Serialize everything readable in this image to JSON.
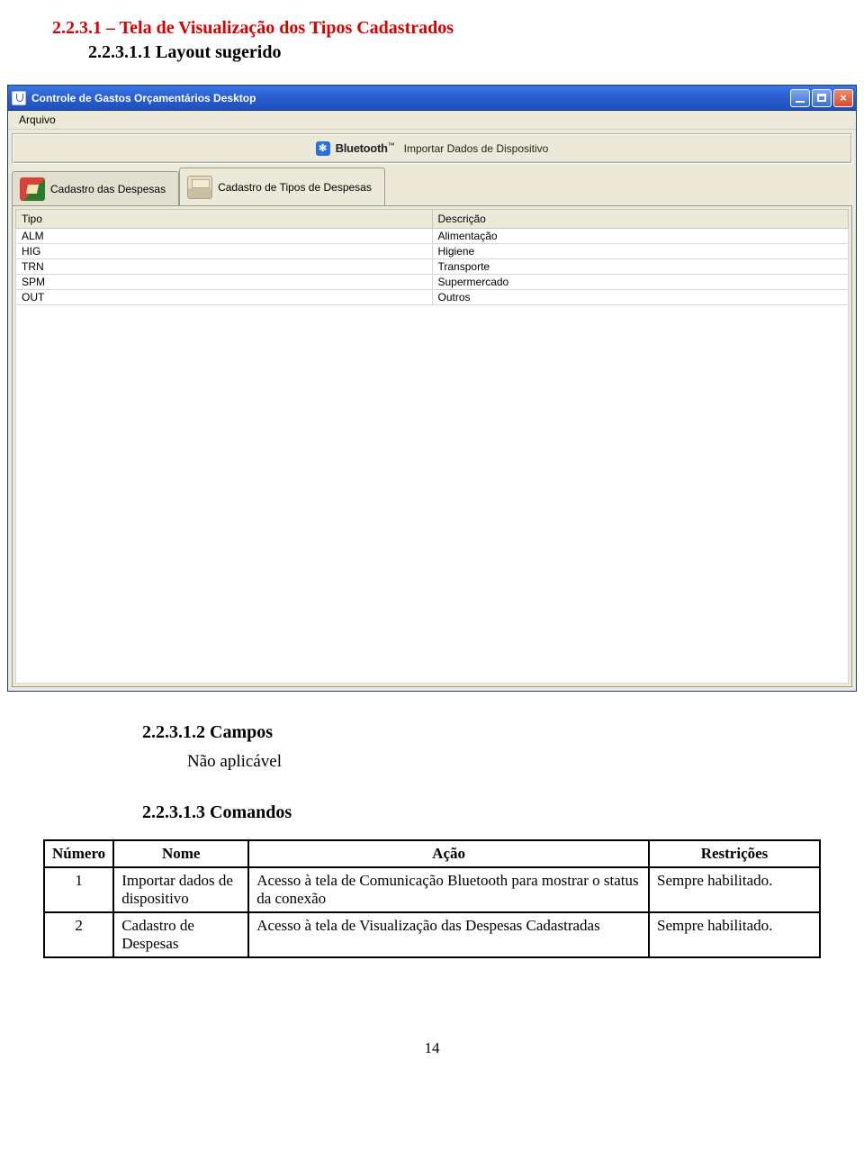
{
  "doc": {
    "heading_red": "2.2.3.1 – Tela de Visualização dos Tipos Cadastrados",
    "heading_layout": "2.2.3.1.1 Layout sugerido",
    "heading_campos": "2.2.3.1.2 Campos",
    "campos_body": "Não aplicável",
    "heading_comandos": "2.2.3.1.3 Comandos",
    "page_number": "14"
  },
  "window": {
    "title": "Controle de Gastos Orçamentários Desktop",
    "menu": {
      "arquivo": "Arquivo"
    },
    "bluetooth": {
      "word": "Bluetooth",
      "text": "Importar Dados de Dispositivo"
    },
    "tabs": {
      "despesas": "Cadastro das Despesas",
      "tipos": "Cadastro de Tipos de Despesas"
    },
    "grid": {
      "col_tipo": "Tipo",
      "col_desc": "Descrição",
      "rows": [
        {
          "tipo": "ALM",
          "desc": "Alimentação"
        },
        {
          "tipo": "HIG",
          "desc": "Higiene"
        },
        {
          "tipo": "TRN",
          "desc": "Transporte"
        },
        {
          "tipo": "SPM",
          "desc": "Supermercado"
        },
        {
          "tipo": "OUT",
          "desc": "Outros"
        }
      ]
    }
  },
  "commands": {
    "headers": {
      "numero": "Número",
      "nome": "Nome",
      "acao": "Ação",
      "restricoes": "Restrições"
    },
    "rows": [
      {
        "numero": "1",
        "nome": "Importar dados de dispositivo",
        "acao": "Acesso à tela de Comunicação Bluetooth para mostrar o status da conexão",
        "restricoes": "Sempre habilitado."
      },
      {
        "numero": "2",
        "nome": "Cadastro de Despesas",
        "acao": "Acesso à tela de Visualização das Despesas Cadastradas",
        "restricoes": "Sempre habilitado."
      }
    ]
  }
}
